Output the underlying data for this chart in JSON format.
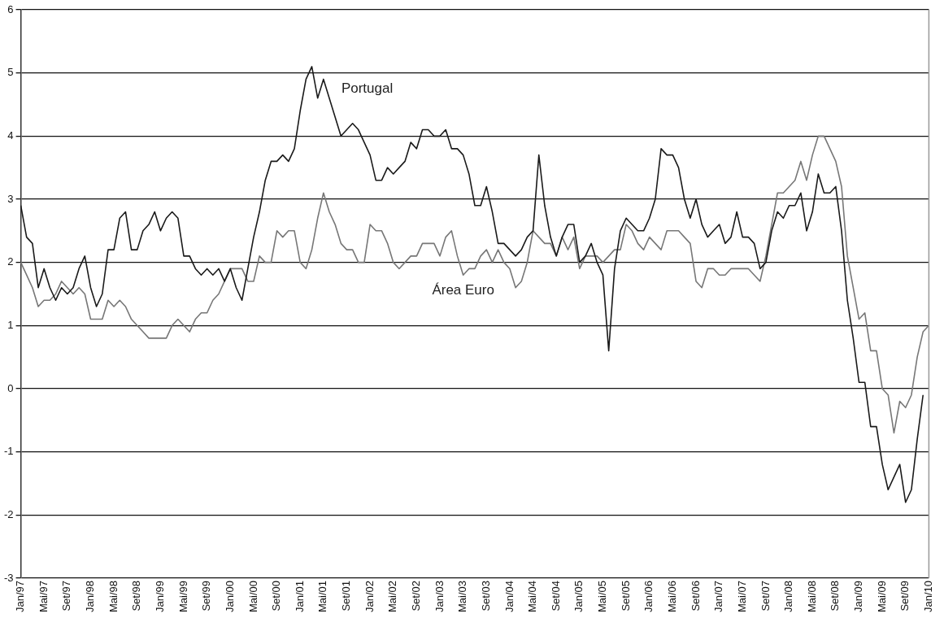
{
  "chart_data": {
    "type": "line",
    "categories": [
      "Jan/97",
      null,
      null,
      null,
      "Mai/97",
      null,
      null,
      null,
      "Set/97",
      null,
      null,
      null,
      "Jan/98",
      null,
      null,
      null,
      "Mai/98",
      null,
      null,
      null,
      "Set/98",
      null,
      null,
      null,
      "Jan/99",
      null,
      null,
      null,
      "Mai/99",
      null,
      null,
      null,
      "Set/99",
      null,
      null,
      null,
      "Jan/00",
      null,
      null,
      null,
      "Mai/00",
      null,
      null,
      null,
      "Set/00",
      null,
      null,
      null,
      "Jan/01",
      null,
      null,
      null,
      "Mai/01",
      null,
      null,
      null,
      "Set/01",
      null,
      null,
      null,
      "Jan/02",
      null,
      null,
      null,
      "Mai/02",
      null,
      null,
      null,
      "Set/02",
      null,
      null,
      null,
      "Jan/03",
      null,
      null,
      null,
      "Mai/03",
      null,
      null,
      null,
      "Set/03",
      null,
      null,
      null,
      "Jan/04",
      null,
      null,
      null,
      "Mai/04",
      null,
      null,
      null,
      "Set/04",
      null,
      null,
      null,
      "Jan/05",
      null,
      null,
      null,
      "Mai/05",
      null,
      null,
      null,
      "Set/05",
      null,
      null,
      null,
      "Jan/06",
      null,
      null,
      null,
      "Mai/06",
      null,
      null,
      null,
      "Set/06",
      null,
      null,
      null,
      "Jan/07",
      null,
      null,
      null,
      "Mai/07",
      null,
      null,
      null,
      "Set/07",
      null,
      null,
      null,
      "Jan/08",
      null,
      null,
      null,
      "Mai/08",
      null,
      null,
      null,
      "Set/08",
      null,
      null,
      null,
      "Jan/09",
      null,
      null,
      null,
      "Mai/09",
      null,
      null,
      null,
      "Set/09",
      null,
      null,
      null,
      "Jan/10"
    ],
    "series": [
      {
        "name": "Portugal",
        "color": "#1a1a1a",
        "values": [
          2.9,
          2.4,
          2.3,
          1.6,
          1.9,
          1.6,
          1.4,
          1.6,
          1.5,
          1.6,
          1.9,
          2.1,
          1.6,
          1.3,
          1.5,
          2.2,
          2.2,
          2.7,
          2.8,
          2.2,
          2.2,
          2.5,
          2.6,
          2.8,
          2.5,
          2.7,
          2.8,
          2.7,
          2.1,
          2.1,
          1.9,
          1.8,
          1.9,
          1.8,
          1.9,
          1.7,
          1.9,
          1.6,
          1.4,
          1.9,
          2.4,
          2.8,
          3.3,
          3.6,
          3.6,
          3.7,
          3.6,
          3.8,
          4.4,
          4.9,
          5.1,
          4.6,
          4.9,
          4.6,
          4.3,
          4.0,
          4.1,
          4.2,
          4.1,
          3.9,
          3.7,
          3.3,
          3.3,
          3.5,
          3.4,
          3.5,
          3.6,
          3.9,
          3.8,
          4.1,
          4.1,
          4.0,
          4.0,
          4.1,
          3.8,
          3.8,
          3.7,
          3.4,
          2.9,
          2.9,
          3.2,
          2.8,
          2.3,
          2.3,
          2.2,
          2.1,
          2.2,
          2.4,
          2.5,
          3.7,
          2.9,
          2.4,
          2.1,
          2.4,
          2.6,
          2.6,
          2.0,
          2.1,
          2.3,
          2.0,
          1.8,
          0.6,
          1.9,
          2.5,
          2.7,
          2.6,
          2.5,
          2.5,
          2.7,
          3.0,
          3.8,
          3.7,
          3.7,
          3.5,
          3.0,
          2.7,
          3.0,
          2.6,
          2.4,
          2.5,
          2.6,
          2.3,
          2.4,
          2.8,
          2.4,
          2.4,
          2.3,
          1.9,
          2.0,
          2.5,
          2.8,
          2.7,
          2.9,
          2.9,
          3.1,
          2.5,
          2.8,
          3.4,
          3.1,
          3.1,
          3.2,
          2.5,
          1.4,
          0.8,
          0.1,
          0.1,
          -0.6,
          -0.6,
          -1.2,
          -1.6,
          -1.4,
          -1.2,
          -1.8,
          -1.6,
          -0.8,
          -0.1,
          null
        ]
      },
      {
        "name": "Área Euro",
        "color": "#777777",
        "values": [
          2.0,
          1.8,
          1.6,
          1.3,
          1.4,
          1.4,
          1.5,
          1.7,
          1.6,
          1.5,
          1.6,
          1.5,
          1.1,
          1.1,
          1.1,
          1.4,
          1.3,
          1.4,
          1.3,
          1.1,
          1.0,
          0.9,
          0.8,
          0.8,
          0.8,
          0.8,
          1.0,
          1.1,
          1.0,
          0.9,
          1.1,
          1.2,
          1.2,
          1.4,
          1.5,
          1.7,
          1.9,
          1.9,
          1.9,
          1.7,
          1.7,
          2.1,
          2.0,
          2.0,
          2.5,
          2.4,
          2.5,
          2.5,
          2.0,
          1.9,
          2.2,
          2.7,
          3.1,
          2.8,
          2.6,
          2.3,
          2.2,
          2.2,
          2.0,
          2.0,
          2.6,
          2.5,
          2.5,
          2.3,
          2.0,
          1.9,
          2.0,
          2.1,
          2.1,
          2.3,
          2.3,
          2.3,
          2.1,
          2.4,
          2.5,
          2.1,
          1.8,
          1.9,
          1.9,
          2.1,
          2.2,
          2.0,
          2.2,
          2.0,
          1.9,
          1.6,
          1.7,
          2.0,
          2.5,
          2.4,
          2.3,
          2.3,
          2.1,
          2.4,
          2.2,
          2.4,
          1.9,
          2.1,
          2.1,
          2.1,
          2.0,
          2.1,
          2.2,
          2.2,
          2.6,
          2.5,
          2.3,
          2.2,
          2.4,
          2.3,
          2.2,
          2.5,
          2.5,
          2.5,
          2.4,
          2.3,
          1.7,
          1.6,
          1.9,
          1.9,
          1.8,
          1.8,
          1.9,
          1.9,
          1.9,
          1.9,
          1.8,
          1.7,
          2.1,
          2.6,
          3.1,
          3.1,
          3.2,
          3.3,
          3.6,
          3.3,
          3.7,
          4.0,
          4.0,
          3.8,
          3.6,
          3.2,
          2.1,
          1.6,
          1.1,
          1.2,
          0.6,
          0.6,
          0.0,
          -0.1,
          -0.7,
          -0.2,
          -0.3,
          -0.1,
          0.5,
          0.9,
          1.0
        ]
      }
    ],
    "ylim": [
      -3,
      6
    ],
    "yticks": [
      -3,
      -2,
      -1,
      0,
      1,
      2,
      3,
      4,
      5,
      6
    ],
    "grid": "y",
    "legend": false,
    "marker": "none",
    "line_style": "solid"
  }
}
